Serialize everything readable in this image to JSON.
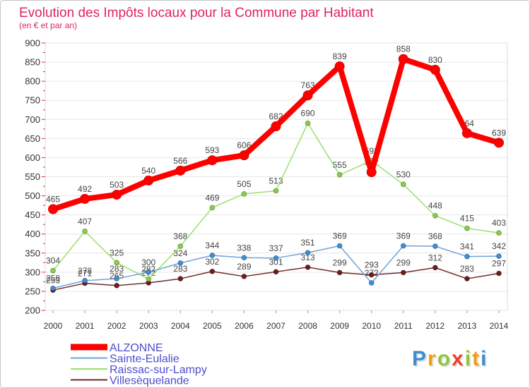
{
  "chart_data": {
    "type": "line",
    "title": "Evolution des Impôts locaux pour la Commune par Habitant",
    "subtitle": "(en € et par an)",
    "categories": [
      "2000",
      "2001",
      "2002",
      "2003",
      "2004",
      "2005",
      "2006",
      "2007",
      "2008",
      "2009",
      "2010",
      "2011",
      "2012",
      "2013",
      "2014"
    ],
    "ylim": [
      200,
      900
    ],
    "yticks": [
      200,
      250,
      300,
      350,
      400,
      450,
      500,
      550,
      600,
      650,
      700,
      750,
      800,
      850,
      900
    ],
    "grid": true,
    "legend": "bottom-left",
    "series": [
      {
        "name": "ALZONNE",
        "color": "#ff0000",
        "marker_color": "#ff0000",
        "values": [
          465,
          492,
          503,
          540,
          566,
          593,
          606,
          682,
          763,
          839,
          562,
          858,
          830,
          664,
          639
        ]
      },
      {
        "name": "Sainte-Eulalie",
        "color": "#6fa3d8",
        "marker_color": "#3a8fd8",
        "values": [
          258,
          278,
          283,
          300,
          324,
          344,
          338,
          337,
          351,
          369,
          272,
          369,
          368,
          341,
          342
        ]
      },
      {
        "name": "Raissac-sur-Lampy",
        "color": "#9be06b",
        "marker_color": "#86cf45",
        "values": [
          304,
          407,
          325,
          282,
          368,
          469,
          505,
          513,
          690,
          555,
          592,
          530,
          448,
          415,
          403
        ]
      },
      {
        "name": "Villesèquelande",
        "color": "#6e2a2a",
        "marker_color": "#6e1c1c",
        "values": [
          253,
          271,
          265,
          272,
          283,
          302,
          289,
          301,
          313,
          299,
          293,
          299,
          312,
          283,
          297
        ]
      }
    ]
  },
  "logo": {
    "text": "Proxiti",
    "colors": [
      "#3b8fd0",
      "#f39c12",
      "#8dc63f",
      "#e8412c",
      "#8dc63f",
      "#f39c12",
      "#3b8fd0"
    ]
  }
}
